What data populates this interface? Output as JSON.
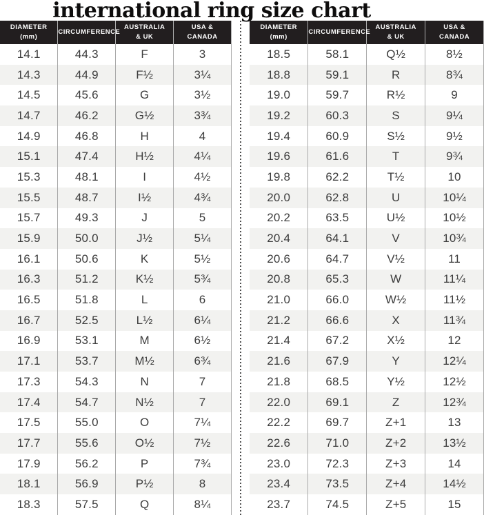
{
  "title": "international ring size chart",
  "colors": {
    "header_bg": "#221e1f",
    "header_text": "#ffffff",
    "row_alt": "#f2f2f0",
    "body_text": "#3c3c3c",
    "grid_line": "#a8a8a8",
    "divider_dot": "#4f4f4f",
    "title_text": "#0e0d0d"
  },
  "chart_data": {
    "type": "table",
    "title": "international ring size chart",
    "columns": [
      "Diameter (mm)",
      "Circumference",
      "Australia & UK",
      "USA & Canada"
    ],
    "columns_display": [
      "DIAMETER\n(mm)",
      "CIRCUMFERENCE",
      "AUSTRALIA\n& UK",
      "USA &\nCANADA"
    ],
    "tables": [
      {
        "side": "left",
        "rows": [
          [
            "14.1",
            "44.3",
            "F",
            "3"
          ],
          [
            "14.3",
            "44.9",
            "F½",
            "3¼"
          ],
          [
            "14.5",
            "45.6",
            "G",
            "3½"
          ],
          [
            "14.7",
            "46.2",
            "G½",
            "3¾"
          ],
          [
            "14.9",
            "46.8",
            "H",
            "4"
          ],
          [
            "15.1",
            "47.4",
            "H½",
            "4¼"
          ],
          [
            "15.3",
            "48.1",
            "I",
            "4½"
          ],
          [
            "15.5",
            "48.7",
            "I½",
            "4¾"
          ],
          [
            "15.7",
            "49.3",
            "J",
            "5"
          ],
          [
            "15.9",
            "50.0",
            "J½",
            "5¼"
          ],
          [
            "16.1",
            "50.6",
            "K",
            "5½"
          ],
          [
            "16.3",
            "51.2",
            "K½",
            "5¾"
          ],
          [
            "16.5",
            "51.8",
            "L",
            "6"
          ],
          [
            "16.7",
            "52.5",
            "L½",
            "6¼"
          ],
          [
            "16.9",
            "53.1",
            "M",
            "6½"
          ],
          [
            "17.1",
            "53.7",
            "M½",
            "6¾"
          ],
          [
            "17.3",
            "54.3",
            "N",
            "7"
          ],
          [
            "17.4",
            "54.7",
            "N½",
            "7"
          ],
          [
            "17.5",
            "55.0",
            "O",
            "7¼"
          ],
          [
            "17.7",
            "55.6",
            "O½",
            "7½"
          ],
          [
            "17.9",
            "56.2",
            "P",
            "7¾"
          ],
          [
            "18.1",
            "56.9",
            "P½",
            "8"
          ],
          [
            "18.3",
            "57.5",
            "Q",
            "8¼"
          ]
        ]
      },
      {
        "side": "right",
        "rows": [
          [
            "18.5",
            "58.1",
            "Q½",
            "8½"
          ],
          [
            "18.8",
            "59.1",
            "R",
            "8¾"
          ],
          [
            "19.0",
            "59.7",
            "R½",
            "9"
          ],
          [
            "19.2",
            "60.3",
            "S",
            "9¼"
          ],
          [
            "19.4",
            "60.9",
            "S½",
            "9½"
          ],
          [
            "19.6",
            "61.6",
            "T",
            "9¾"
          ],
          [
            "19.8",
            "62.2",
            "T½",
            "10"
          ],
          [
            "20.0",
            "62.8",
            "U",
            "10¼"
          ],
          [
            "20.2",
            "63.5",
            "U½",
            "10½"
          ],
          [
            "20.4",
            "64.1",
            "V",
            "10¾"
          ],
          [
            "20.6",
            "64.7",
            "V½",
            "11"
          ],
          [
            "20.8",
            "65.3",
            "W",
            "11¼"
          ],
          [
            "21.0",
            "66.0",
            "W½",
            "11½"
          ],
          [
            "21.2",
            "66.6",
            "X",
            "11¾"
          ],
          [
            "21.4",
            "67.2",
            "X½",
            "12"
          ],
          [
            "21.6",
            "67.9",
            "Y",
            "12¼"
          ],
          [
            "21.8",
            "68.5",
            "Y½",
            "12½"
          ],
          [
            "22.0",
            "69.1",
            "Z",
            "12¾"
          ],
          [
            "22.2",
            "69.7",
            "Z+1",
            "13"
          ],
          [
            "22.6",
            "71.0",
            "Z+2",
            "13½"
          ],
          [
            "23.0",
            "72.3",
            "Z+3",
            "14"
          ],
          [
            "23.4",
            "73.5",
            "Z+4",
            "14½"
          ],
          [
            "23.7",
            "74.5",
            "Z+5",
            "15"
          ]
        ]
      }
    ]
  }
}
